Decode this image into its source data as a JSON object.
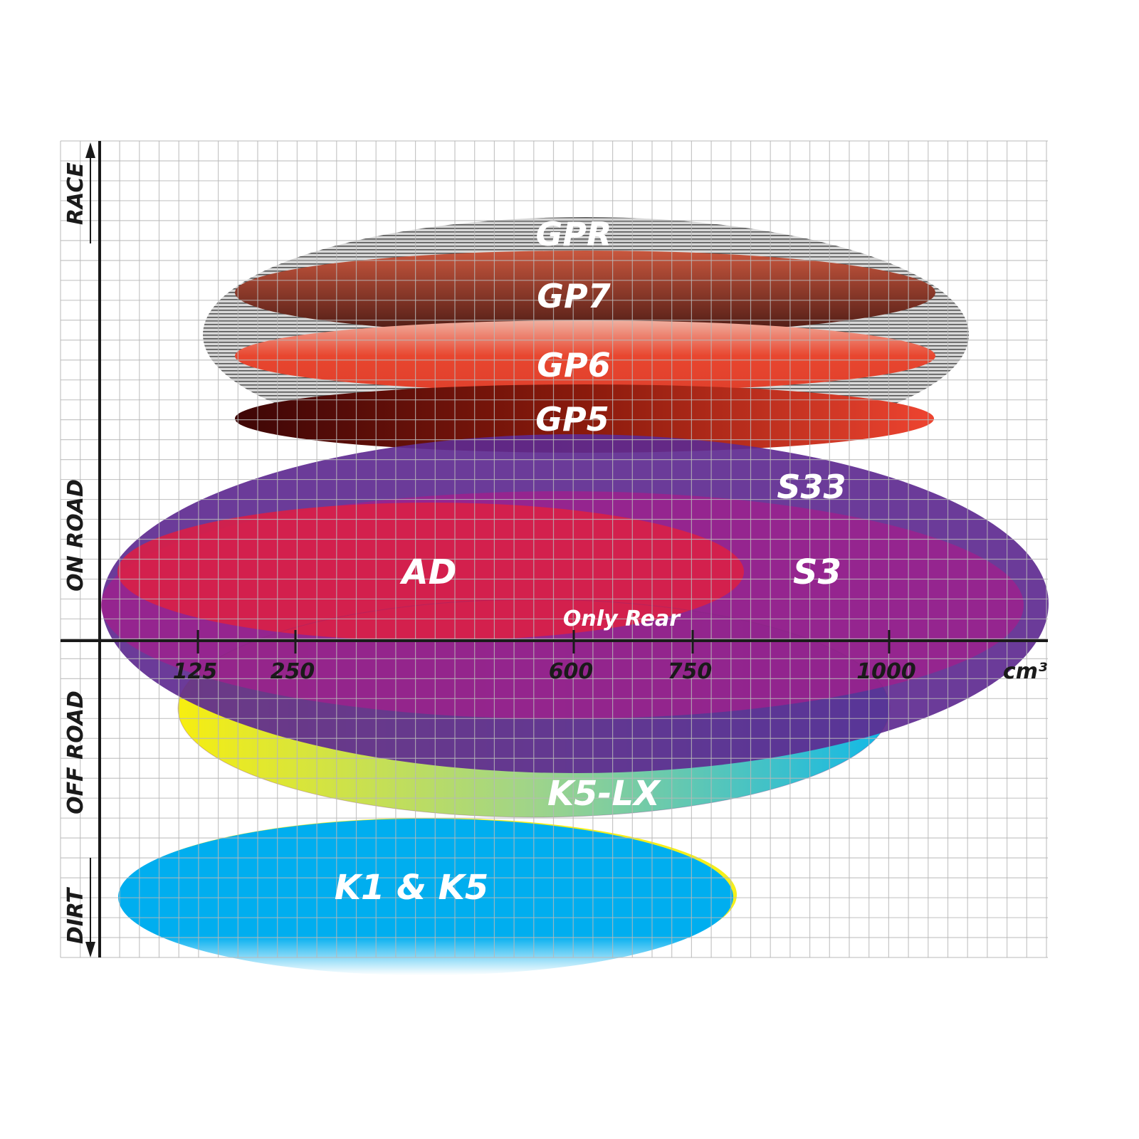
{
  "side_labels": {
    "race": "RACE",
    "on_road": "ON ROAD",
    "off_road": "OFF ROAD",
    "dirt": "DIRT"
  },
  "x_axis": {
    "ticks": [
      "125",
      "250",
      "600",
      "750",
      "1000"
    ],
    "unit": "cm³"
  },
  "tires": {
    "gpr": {
      "label": "GPR",
      "color": "#9a9a9a"
    },
    "gp7": {
      "label": "GP7",
      "color": "#8a3a28"
    },
    "gp6": {
      "label": "GP6",
      "color": "#e8462f"
    },
    "gp5": {
      "label": "GP5",
      "color": "#7a1208"
    },
    "s33": {
      "label": "S33",
      "color": "#5e2a90"
    },
    "s3": {
      "label": "S3",
      "color": "#9a1f8c"
    },
    "ad": {
      "label": "AD",
      "color": "#d81f48"
    },
    "s3_note": {
      "label": "Only Rear"
    },
    "k5lx": {
      "label": "K5-LX",
      "color": "#f5ef1a"
    },
    "k1k5": {
      "label": "K1 & K5",
      "color": "#00aeef"
    }
  }
}
